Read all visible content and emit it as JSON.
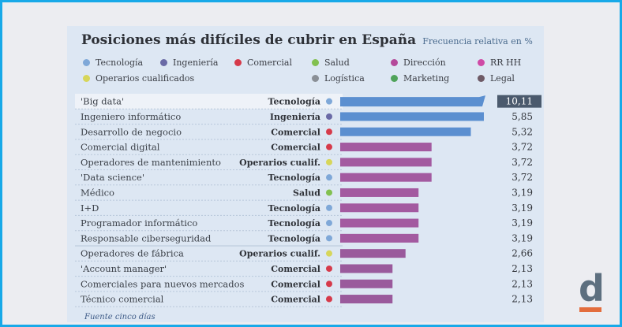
{
  "chart_data": {
    "type": "bar",
    "orientation": "horizontal",
    "title": "Posiciones más difíciles de cubrir en España",
    "subtitle": "Frecuencia relativa en %",
    "legend": [
      {
        "name": "Tecnología",
        "color": "#7fa8d8"
      },
      {
        "name": "Ingeniería",
        "color": "#6a6aa6"
      },
      {
        "name": "Comercial",
        "color": "#d63a4a"
      },
      {
        "name": "Salud",
        "color": "#82c050"
      },
      {
        "name": "Dirección",
        "color": "#b4499a"
      },
      {
        "name": "RR HH",
        "color": "#cf4aa6"
      },
      {
        "name": "Operarios cualificados",
        "color": "#d7d65a"
      },
      {
        "name": "Logística",
        "color": "#8a8f96"
      },
      {
        "name": "Marketing",
        "color": "#4fa35a"
      },
      {
        "name": "Legal",
        "color": "#6e5a66"
      }
    ],
    "rows": [
      {
        "name": "'Big data'",
        "category": "Tecnología",
        "value": 10.11,
        "label": "10,11",
        "dot": "#7fa8d8",
        "bar": "#5b8fd0",
        "highlight": true
      },
      {
        "name": "Ingeniero informático",
        "category": "Ingeniería",
        "value": 5.85,
        "label": "5,85",
        "dot": "#6a6aa6",
        "bar": "#5b8fd0"
      },
      {
        "name": "Desarrollo de negocio",
        "category": "Comercial",
        "value": 5.32,
        "label": "5,32",
        "dot": "#d63a4a",
        "bar": "#5b8fd0"
      },
      {
        "name": "Comercial digital",
        "category": "Comercial",
        "value": 3.72,
        "label": "3,72",
        "dot": "#d63a4a",
        "bar": "#a35aa0"
      },
      {
        "name": "Operadores de mantenimiento",
        "category": "Operarios cualif.",
        "value": 3.72,
        "label": "3,72",
        "dot": "#d7d65a",
        "bar": "#a35aa0"
      },
      {
        "name": "'Data science'",
        "category": "Tecnología",
        "value": 3.72,
        "label": "3,72",
        "dot": "#7fa8d8",
        "bar": "#a35aa0"
      },
      {
        "name": "Médico",
        "category": "Salud",
        "value": 3.19,
        "label": "3,19",
        "dot": "#82c050",
        "bar": "#a35aa0"
      },
      {
        "name": "I+D",
        "category": "Tecnología",
        "value": 3.19,
        "label": "3,19",
        "dot": "#7fa8d8",
        "bar": "#a35aa0"
      },
      {
        "name": "Programador informático",
        "category": "Tecnología",
        "value": 3.19,
        "label": "3,19",
        "dot": "#7fa8d8",
        "bar": "#a35aa0"
      },
      {
        "name": "Responsable ciberseguridad",
        "category": "Tecnología",
        "value": 3.19,
        "label": "3,19",
        "dot": "#7fa8d8",
        "bar": "#a35aa0"
      },
      {
        "name": "Operadores de fábrica",
        "category": "Operarios cualif.",
        "value": 2.66,
        "label": "2,66",
        "dot": "#d7d65a",
        "bar": "#9a5a9c"
      },
      {
        "name": "'Account manager'",
        "category": "Comercial",
        "value": 2.13,
        "label": "2,13",
        "dot": "#d63a4a",
        "bar": "#9a5a9c"
      },
      {
        "name": "Comerciales para nuevos mercados",
        "category": "Comercial",
        "value": 2.13,
        "label": "2,13",
        "dot": "#d63a4a",
        "bar": "#9a5a9c"
      },
      {
        "name": "Técnico comercial",
        "category": "Comercial",
        "value": 2.13,
        "label": "2,13",
        "dot": "#d63a4a",
        "bar": "#9a5a9c"
      }
    ]
  },
  "source": "Fuente cinco días",
  "logo": {
    "letter": "d",
    "color": "#5d6f7f",
    "bar_color": "#e36d3d"
  }
}
